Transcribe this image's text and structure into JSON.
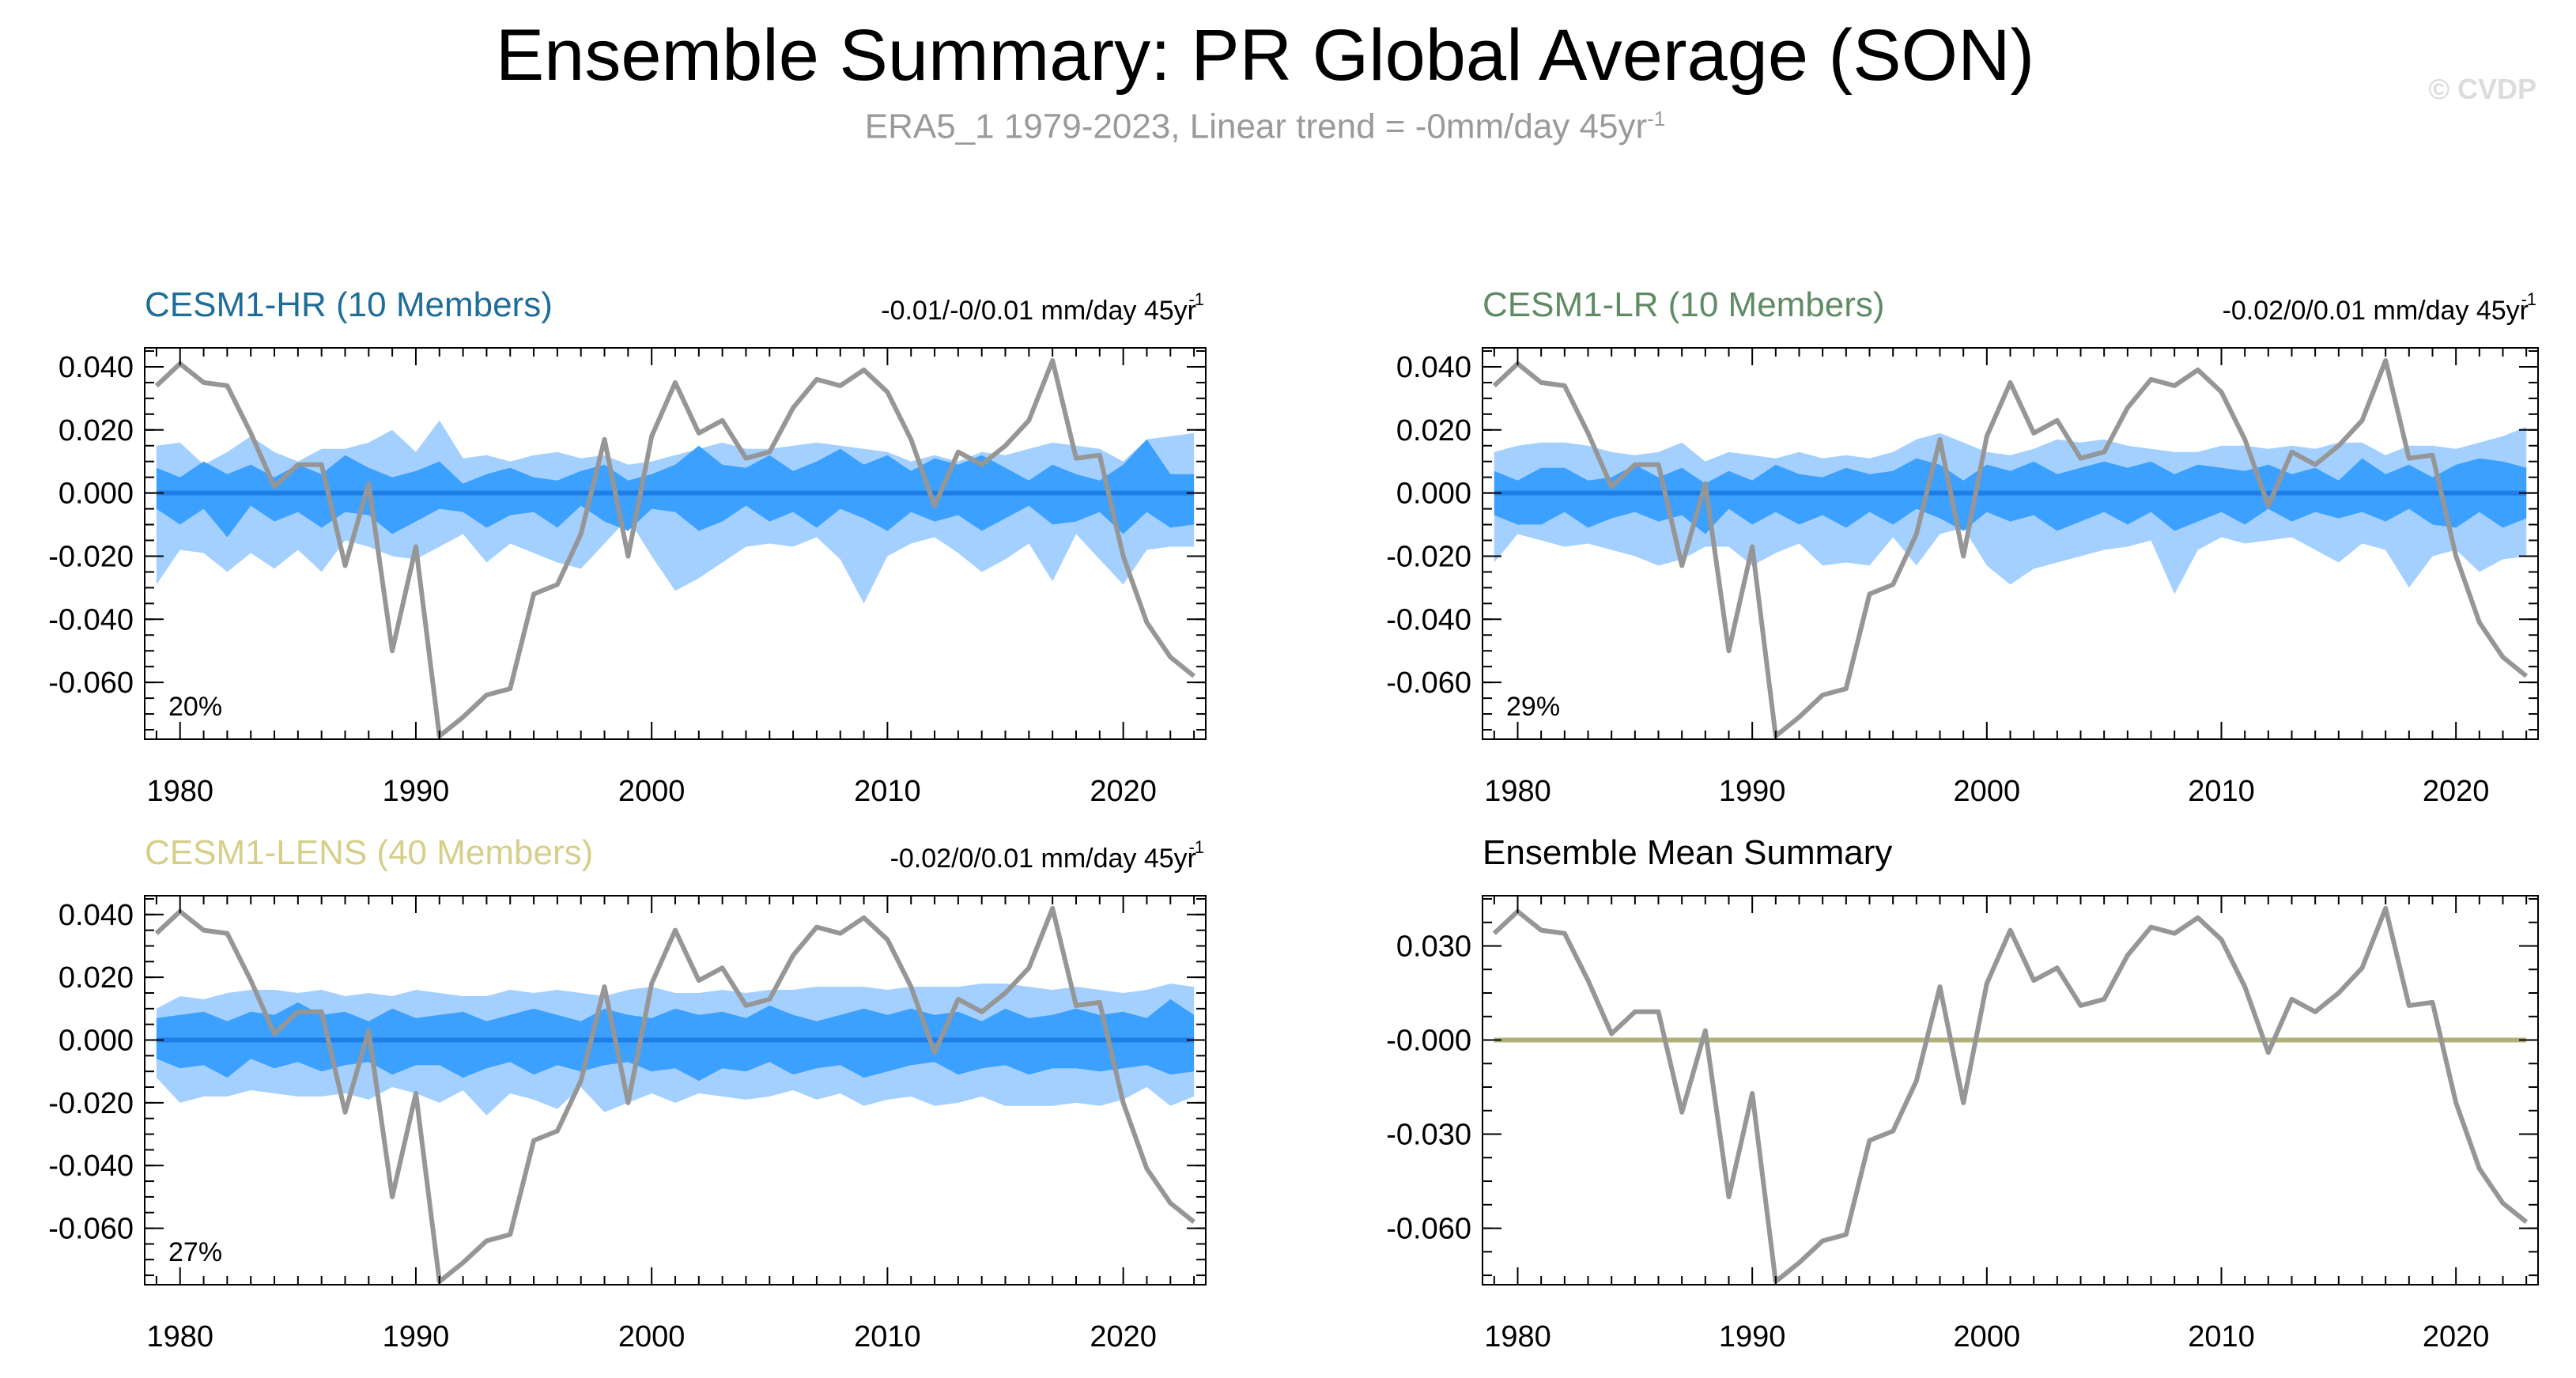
{
  "title": "Ensemble Summary: PR Global Average (SON)",
  "subtitle": "ERA5_1 1979-2023, Linear trend = -0mm/day 45yr",
  "subtitle_sup": "-1",
  "watermark": "© CVDP",
  "colors": {
    "band_outer": "#a3d0ff",
    "band_inner": "#3ca0ff",
    "ens_mean": "#1e7ee6",
    "obs": "#969696",
    "title_hr": "#1f6e99",
    "title_lr": "#5f8c64",
    "title_lens": "#d6cf8a",
    "summary_mean": "#b0b07a"
  },
  "chart_data": [
    {
      "type": "area",
      "title": "CESM1-HR (10 Members)",
      "trend_label": "-0.01/-0/0.01 mm/day 45yr",
      "trend_sup": "-1",
      "pct_label": "20%",
      "ylim": [
        -0.078,
        0.046
      ],
      "yticks": [
        0.04,
        0.02,
        0.0,
        -0.02,
        -0.04,
        -0.06
      ],
      "ytick_labels": [
        "0.040",
        "0.020",
        "0.000",
        "-0.020",
        "-0.040",
        "-0.060"
      ],
      "xticks": [
        1980,
        1990,
        2000,
        2010,
        2020
      ],
      "xlim": [
        1978.5,
        2023.5
      ],
      "x_start": 1979,
      "outer_hi": [
        0.015,
        0.016,
        0.009,
        0.013,
        0.018,
        0.013,
        0.01,
        0.014,
        0.014,
        0.016,
        0.02,
        0.013,
        0.023,
        0.011,
        0.012,
        0.01,
        0.012,
        0.013,
        0.011,
        0.012,
        0.009,
        0.01,
        0.012,
        0.014,
        0.016,
        0.014,
        0.014,
        0.015,
        0.016,
        0.015,
        0.014,
        0.013,
        0.01,
        0.012,
        0.01,
        0.013,
        0.012,
        0.014,
        0.016,
        0.015,
        0.014,
        0.01,
        0.017,
        0.018,
        0.019
      ],
      "outer_lo": [
        -0.029,
        -0.018,
        -0.019,
        -0.025,
        -0.019,
        -0.024,
        -0.018,
        -0.025,
        -0.015,
        -0.017,
        -0.02,
        -0.021,
        -0.017,
        -0.013,
        -0.022,
        -0.016,
        -0.019,
        -0.022,
        -0.024,
        -0.016,
        -0.008,
        -0.02,
        -0.031,
        -0.027,
        -0.022,
        -0.017,
        -0.016,
        -0.017,
        -0.014,
        -0.021,
        -0.035,
        -0.02,
        -0.016,
        -0.014,
        -0.019,
        -0.025,
        -0.021,
        -0.016,
        -0.028,
        -0.013,
        -0.021,
        -0.029,
        -0.018,
        -0.017,
        -0.017
      ],
      "inner_hi": [
        0.008,
        0.005,
        0.01,
        0.006,
        0.009,
        0.005,
        0.009,
        0.006,
        0.012,
        0.008,
        0.005,
        0.007,
        0.01,
        0.003,
        0.006,
        0.008,
        0.005,
        0.004,
        0.007,
        0.009,
        0.004,
        0.006,
        0.009,
        0.015,
        0.009,
        0.008,
        0.012,
        0.007,
        0.01,
        0.014,
        0.009,
        0.012,
        0.007,
        0.011,
        0.009,
        0.012,
        0.008,
        0.004,
        0.009,
        0.006,
        0.004,
        0.009,
        0.017,
        0.006,
        0.006
      ],
      "inner_lo": [
        -0.005,
        -0.01,
        -0.005,
        -0.014,
        -0.004,
        -0.009,
        -0.006,
        -0.011,
        -0.006,
        -0.007,
        -0.013,
        -0.009,
        -0.005,
        -0.006,
        -0.011,
        -0.007,
        -0.006,
        -0.011,
        -0.004,
        -0.009,
        -0.012,
        -0.005,
        -0.006,
        -0.012,
        -0.009,
        -0.004,
        -0.009,
        -0.006,
        -0.011,
        -0.005,
        -0.008,
        -0.012,
        -0.006,
        -0.009,
        -0.007,
        -0.012,
        -0.008,
        -0.004,
        -0.01,
        -0.009,
        -0.006,
        -0.013,
        -0.006,
        -0.011,
        -0.01
      ],
      "ens_mean": 0.0
    },
    {
      "type": "area",
      "title": "CESM1-LR (10 Members)",
      "trend_label": "-0.02/0/0.01 mm/day 45yr",
      "trend_sup": "-1",
      "pct_label": "29%",
      "ylim": [
        -0.078,
        0.046
      ],
      "yticks": [
        0.04,
        0.02,
        0.0,
        -0.02,
        -0.04,
        -0.06
      ],
      "ytick_labels": [
        "0.040",
        "0.020",
        "0.000",
        "-0.020",
        "-0.040",
        "-0.060"
      ],
      "xticks": [
        1980,
        1990,
        2000,
        2010,
        2020
      ],
      "xlim": [
        1978.5,
        2023.5
      ],
      "x_start": 1979,
      "outer_hi": [
        0.013,
        0.015,
        0.016,
        0.016,
        0.015,
        0.013,
        0.012,
        0.013,
        0.016,
        0.01,
        0.013,
        0.012,
        0.011,
        0.013,
        0.011,
        0.012,
        0.011,
        0.013,
        0.017,
        0.019,
        0.016,
        0.013,
        0.012,
        0.014,
        0.017,
        0.016,
        0.017,
        0.015,
        0.014,
        0.013,
        0.013,
        0.015,
        0.015,
        0.014,
        0.015,
        0.014,
        0.016,
        0.016,
        0.012,
        0.015,
        0.015,
        0.014,
        0.016,
        0.018,
        0.021
      ],
      "outer_lo": [
        -0.022,
        -0.013,
        -0.015,
        -0.017,
        -0.016,
        -0.018,
        -0.02,
        -0.023,
        -0.021,
        -0.017,
        -0.017,
        -0.023,
        -0.019,
        -0.016,
        -0.023,
        -0.022,
        -0.023,
        -0.014,
        -0.023,
        -0.013,
        -0.011,
        -0.023,
        -0.029,
        -0.024,
        -0.022,
        -0.02,
        -0.018,
        -0.017,
        -0.015,
        -0.032,
        -0.018,
        -0.014,
        -0.016,
        -0.015,
        -0.014,
        -0.018,
        -0.022,
        -0.016,
        -0.018,
        -0.03,
        -0.02,
        -0.018,
        -0.025,
        -0.021,
        -0.02
      ],
      "inner_hi": [
        0.007,
        0.004,
        0.008,
        0.008,
        0.004,
        0.005,
        0.009,
        0.005,
        0.008,
        0.003,
        0.007,
        0.004,
        0.009,
        0.006,
        0.005,
        0.008,
        0.006,
        0.007,
        0.011,
        0.009,
        0.004,
        0.009,
        0.007,
        0.01,
        0.006,
        0.008,
        0.01,
        0.008,
        0.01,
        0.006,
        0.009,
        0.008,
        0.007,
        0.009,
        0.006,
        0.008,
        0.004,
        0.011,
        0.006,
        0.009,
        0.005,
        0.009,
        0.011,
        0.01,
        0.008
      ],
      "inner_lo": [
        -0.007,
        -0.01,
        -0.01,
        -0.006,
        -0.011,
        -0.008,
        -0.006,
        -0.009,
        -0.007,
        -0.013,
        -0.005,
        -0.01,
        -0.006,
        -0.01,
        -0.007,
        -0.011,
        -0.006,
        -0.01,
        -0.005,
        -0.008,
        -0.012,
        -0.006,
        -0.009,
        -0.007,
        -0.012,
        -0.009,
        -0.006,
        -0.01,
        -0.006,
        -0.012,
        -0.009,
        -0.006,
        -0.01,
        -0.005,
        -0.009,
        -0.006,
        -0.008,
        -0.006,
        -0.009,
        -0.005,
        -0.01,
        -0.011,
        -0.006,
        -0.011,
        -0.008
      ],
      "ens_mean": 0.0
    },
    {
      "type": "area",
      "title": "CESM1-LENS (40 Members)",
      "trend_label": "-0.02/0/0.01 mm/day 45yr",
      "trend_sup": "-1",
      "pct_label": "27%",
      "ylim": [
        -0.078,
        0.046
      ],
      "yticks": [
        0.04,
        0.02,
        0.0,
        -0.02,
        -0.04,
        -0.06
      ],
      "ytick_labels": [
        "0.040",
        "0.020",
        "0.000",
        "-0.020",
        "-0.040",
        "-0.060"
      ],
      "xticks": [
        1980,
        1990,
        2000,
        2010,
        2020
      ],
      "xlim": [
        1978.5,
        2023.5
      ],
      "x_start": 1979,
      "outer_hi": [
        0.01,
        0.014,
        0.013,
        0.015,
        0.016,
        0.016,
        0.015,
        0.016,
        0.014,
        0.015,
        0.014,
        0.016,
        0.015,
        0.014,
        0.014,
        0.016,
        0.015,
        0.016,
        0.015,
        0.014,
        0.016,
        0.017,
        0.015,
        0.015,
        0.016,
        0.015,
        0.016,
        0.016,
        0.017,
        0.017,
        0.017,
        0.016,
        0.017,
        0.017,
        0.017,
        0.018,
        0.018,
        0.017,
        0.016,
        0.017,
        0.016,
        0.015,
        0.016,
        0.018,
        0.017
      ],
      "outer_lo": [
        -0.012,
        -0.02,
        -0.018,
        -0.018,
        -0.016,
        -0.017,
        -0.018,
        -0.018,
        -0.017,
        -0.019,
        -0.015,
        -0.017,
        -0.02,
        -0.016,
        -0.024,
        -0.017,
        -0.019,
        -0.022,
        -0.015,
        -0.023,
        -0.02,
        -0.017,
        -0.02,
        -0.017,
        -0.018,
        -0.019,
        -0.018,
        -0.016,
        -0.019,
        -0.017,
        -0.021,
        -0.019,
        -0.018,
        -0.021,
        -0.02,
        -0.018,
        -0.021,
        -0.021,
        -0.021,
        -0.02,
        -0.021,
        -0.019,
        -0.015,
        -0.021,
        -0.018
      ],
      "inner_hi": [
        0.007,
        0.008,
        0.009,
        0.006,
        0.009,
        0.008,
        0.012,
        0.008,
        0.009,
        0.006,
        0.01,
        0.007,
        0.008,
        0.009,
        0.006,
        0.008,
        0.01,
        0.008,
        0.006,
        0.01,
        0.008,
        0.007,
        0.01,
        0.008,
        0.009,
        0.007,
        0.011,
        0.008,
        0.006,
        0.008,
        0.01,
        0.008,
        0.01,
        0.008,
        0.009,
        0.006,
        0.01,
        0.007,
        0.008,
        0.01,
        0.008,
        0.009,
        0.007,
        0.013,
        0.008
      ],
      "inner_lo": [
        -0.006,
        -0.009,
        -0.008,
        -0.012,
        -0.006,
        -0.009,
        -0.007,
        -0.01,
        -0.008,
        -0.007,
        -0.011,
        -0.008,
        -0.008,
        -0.012,
        -0.009,
        -0.007,
        -0.011,
        -0.008,
        -0.01,
        -0.008,
        -0.007,
        -0.01,
        -0.009,
        -0.013,
        -0.009,
        -0.01,
        -0.007,
        -0.011,
        -0.009,
        -0.008,
        -0.012,
        -0.01,
        -0.008,
        -0.007,
        -0.011,
        -0.009,
        -0.008,
        -0.011,
        -0.009,
        -0.009,
        -0.01,
        -0.009,
        -0.008,
        -0.011,
        -0.01
      ],
      "ens_mean": 0.0
    },
    {
      "type": "line",
      "title": "Ensemble Mean Summary",
      "ylim": [
        -0.078,
        0.046
      ],
      "yticks": [
        0.03,
        0.0,
        -0.03,
        -0.06
      ],
      "ytick_labels": [
        "0.030",
        "-0.000",
        "-0.030",
        "-0.060"
      ],
      "xticks": [
        1980,
        1990,
        2000,
        2010,
        2020
      ],
      "xlim": [
        1978.5,
        2023.5
      ],
      "x_start": 1979,
      "mean_line": 0.0
    }
  ],
  "obs_series": {
    "name": "ERA5_1",
    "x_start": 1979,
    "values": [
      0.034,
      0.041,
      0.035,
      0.034,
      0.019,
      0.002,
      0.009,
      0.009,
      -0.023,
      0.003,
      -0.05,
      -0.017,
      -0.077,
      -0.071,
      -0.064,
      -0.062,
      -0.032,
      -0.029,
      -0.013,
      0.017,
      -0.02,
      0.018,
      0.035,
      0.019,
      0.023,
      0.011,
      0.013,
      0.027,
      0.036,
      0.034,
      0.039,
      0.032,
      0.017,
      -0.004,
      0.013,
      0.009,
      0.015,
      0.023,
      0.042,
      0.011,
      0.012,
      -0.02,
      -0.041,
      -0.052,
      -0.058
    ]
  }
}
